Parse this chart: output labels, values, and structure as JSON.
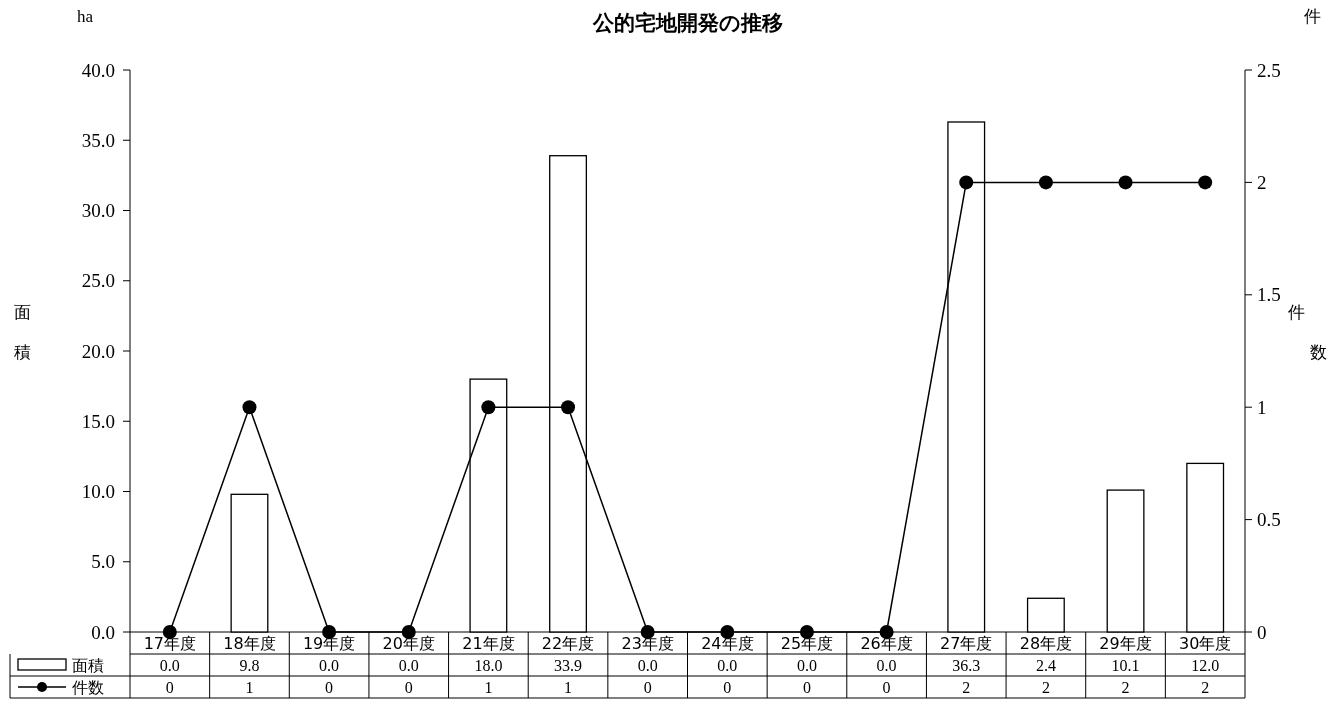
{
  "chart_data": {
    "type": "bar",
    "title": "公的宅地開発の推移",
    "ylabel": "面積",
    "y2label": "件数",
    "annotations": [
      "ha",
      "件"
    ],
    "categories": [
      "17年度",
      "18年度",
      "19年度",
      "20年度",
      "21年度",
      "22年度",
      "23年度",
      "24年度",
      "25年度",
      "26年度",
      "27年度",
      "28年度",
      "29年度",
      "30年度"
    ],
    "series": [
      {
        "name": "面積",
        "color": "#ffffff",
        "values": [
          0.0,
          9.8,
          0.0,
          0.0,
          18.0,
          33.9,
          0.0,
          0.0,
          0.0,
          0.0,
          36.3,
          2.4,
          10.1,
          12.0
        ],
        "value_labels": [
          "0.0",
          "9.8",
          "0.0",
          "0.0",
          "18.0",
          "33.9",
          "0.0",
          "0.0",
          "0.0",
          "0.0",
          "36.3",
          "2.4",
          "10.1",
          "12.0"
        ]
      },
      {
        "name": "件数",
        "type": "line",
        "axis": "y2",
        "color": "#000000",
        "marker": "circle",
        "line_style": "solid",
        "values": [
          0,
          1,
          0,
          0,
          1,
          1,
          0,
          0,
          0,
          0,
          2,
          2,
          2,
          2
        ]
      }
    ],
    "ylim": [
      0,
      40
    ],
    "yticks": [
      {
        "value": 0,
        "label": "0.0"
      },
      {
        "value": 5,
        "label": "5.0"
      },
      {
        "value": 10,
        "label": "10.0"
      },
      {
        "value": 15,
        "label": "15.0"
      },
      {
        "value": 20,
        "label": "20.0"
      },
      {
        "value": 25,
        "label": "25.0"
      },
      {
        "value": 30,
        "label": "30.0"
      },
      {
        "value": 35,
        "label": "35.0"
      },
      {
        "value": 40,
        "label": "40.0"
      }
    ],
    "y2lim": [
      0,
      2.5
    ],
    "y2ticks": [
      0,
      0.5,
      1,
      1.5,
      2,
      2.5
    ],
    "data_labels": true,
    "legend": "bottom",
    "grid": false
  }
}
